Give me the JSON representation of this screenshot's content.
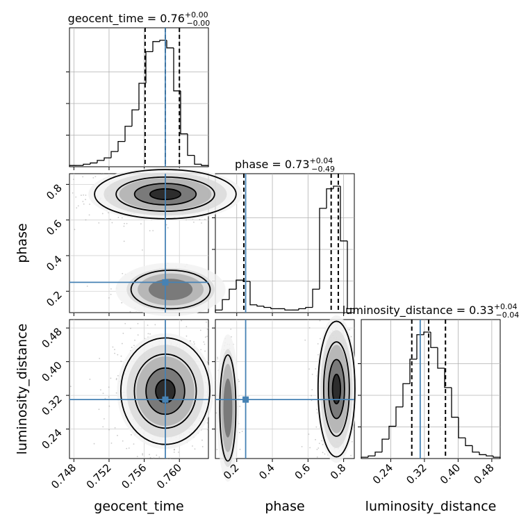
{
  "chart_data": {
    "type": "corner",
    "parameters": [
      "geocent_time",
      "phase",
      "luminosity_distance"
    ],
    "truths": {
      "geocent_time": 0.7584,
      "phase": 0.25,
      "luminosity_distance": 0.31
    },
    "truth_color": "#4682b4",
    "grid": true,
    "titles": [
      {
        "param": "geocent_time",
        "text": "geocent_time = 0.76",
        "sup": "+0.00",
        "sub": "−0.00"
      },
      {
        "param": "phase",
        "text": "phase = 0.73",
        "sup": "+0.04",
        "sub": "−0.49"
      },
      {
        "param": "luminosity_distance",
        "text": "luminosity_distance = 0.33",
        "sup": "+0.04",
        "sub": "−0.04"
      }
    ],
    "ticks": {
      "geocent_time": [
        "0.748",
        "0.752",
        "0.756",
        "0.760"
      ],
      "phase": [
        "0.2",
        "0.4",
        "0.6",
        "0.8"
      ],
      "luminosity_distance": [
        "0.24",
        "0.32",
        "0.40",
        "0.48"
      ]
    },
    "axis_ranges": {
      "geocent_time": [
        0.7475,
        0.7633
      ],
      "phase": [
        0.08,
        0.86
      ],
      "luminosity_distance": [
        0.17,
        0.5
      ]
    },
    "histograms": {
      "geocent_time": {
        "bin_edges": [
          0.7475,
          0.74829,
          0.74908,
          0.74987,
          0.75066,
          0.75145,
          0.75224,
          0.75303,
          0.75382,
          0.75461,
          0.7554,
          0.75619,
          0.75698,
          0.75777,
          0.75856,
          0.75935,
          0.76014,
          0.76093,
          0.76172,
          0.76251,
          0.7633
        ],
        "counts": [
          1,
          1,
          2,
          3,
          5,
          7,
          12,
          20,
          32,
          45,
          66,
          91,
          99,
          100,
          94,
          60,
          26,
          9,
          2,
          1
        ],
        "quantiles": [
          0.7561,
          0.7584,
          0.76
        ]
      },
      "phase": {
        "bin_edges": [
          0.08,
          0.119,
          0.158,
          0.197,
          0.236,
          0.275,
          0.314,
          0.353,
          0.392,
          0.431,
          0.47,
          0.509,
          0.548,
          0.587,
          0.626,
          0.665,
          0.704,
          0.743,
          0.782,
          0.821,
          0.86
        ],
        "counts": [
          2,
          10,
          18,
          25,
          24,
          6,
          5,
          4,
          3,
          3,
          2,
          2,
          3,
          4,
          18,
          80,
          95,
          97,
          55,
          3
        ],
        "quantiles": [
          0.24,
          0.73,
          0.77
        ]
      },
      "luminosity_distance": {
        "bin_edges": [
          0.17,
          0.1865,
          0.203,
          0.2195,
          0.236,
          0.2525,
          0.269,
          0.2855,
          0.302,
          0.3185,
          0.335,
          0.3515,
          0.368,
          0.3845,
          0.401,
          0.4175,
          0.434,
          0.4505,
          0.467,
          0.4835,
          0.5
        ],
        "counts": [
          1,
          2,
          5,
          15,
          25,
          40,
          58,
          77,
          96,
          98,
          86,
          70,
          55,
          32,
          16,
          10,
          5,
          3,
          2,
          1
        ],
        "quantiles": [
          0.29,
          0.33,
          0.37
        ]
      }
    },
    "contours_2d": [
      {
        "x": "geocent_time",
        "y": "phase",
        "blobs": [
          {
            "cx": 0.7584,
            "cy": 0.745,
            "rx": 0.0035,
            "ry": 0.06,
            "weight": 0.8
          },
          {
            "cx": 0.759,
            "cy": 0.21,
            "rx": 0.0025,
            "ry": 0.06,
            "weight": 0.2
          }
        ]
      },
      {
        "x": "geocent_time",
        "y": "luminosity_distance",
        "blobs": [
          {
            "cx": 0.7584,
            "cy": 0.33,
            "rx": 0.0022,
            "ry": 0.055,
            "weight": 1.0
          }
        ]
      },
      {
        "x": "phase",
        "y": "luminosity_distance",
        "blobs": [
          {
            "cx": 0.76,
            "cy": 0.335,
            "rx": 0.045,
            "ry": 0.07,
            "weight": 0.8
          },
          {
            "cx": 0.15,
            "cy": 0.29,
            "rx": 0.025,
            "ry": 0.07,
            "weight": 0.2
          }
        ]
      }
    ]
  }
}
